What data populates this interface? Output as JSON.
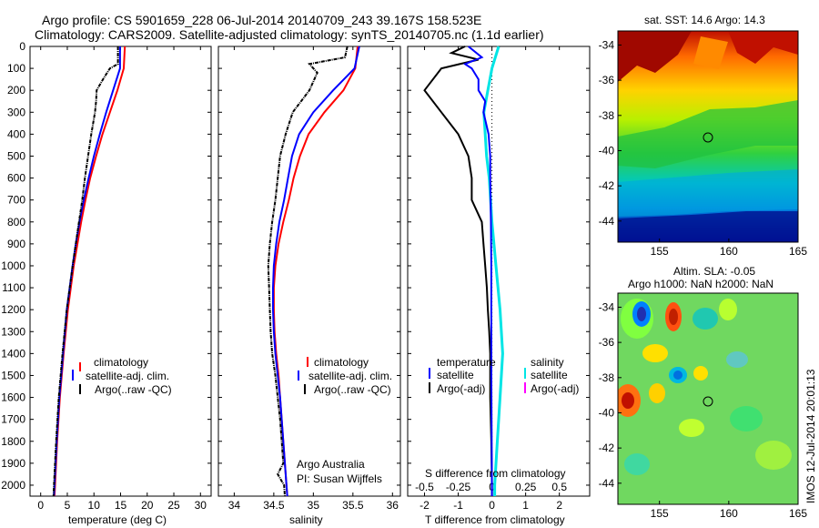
{
  "title_line1": "Argo profile: CS 5901659_228 06-Jul-2014 20140709_243 39.167S 158.523E",
  "title_line2": "Climatology: CARS2009. Satellite-adjusted climatology: synTS_20140705.nc (1.1d earlier)",
  "map_top_title": "sat. SST: 14.6 Argo: 14.3",
  "map_bottom_title1": "Altim. SLA: -0.05",
  "map_bottom_title2": "Argo h1000: NaN h2000: NaN",
  "side_stamp": "IMOS 12-Jul-2014 20:01:13",
  "credit1": "Argo Australia",
  "credit2": "PI: Susan Wijffels",
  "colors": {
    "climatology": "#ff0000",
    "satellite": "#0000ff",
    "argo": "#000000",
    "sal_satellite": "#00e5e5",
    "sal_argo": "#ff00ff"
  },
  "chart_data": [
    {
      "type": "line",
      "name": "temperature_profile",
      "xlabel": "temperature (deg C)",
      "xticks": [
        "0",
        "5",
        "10",
        "15",
        "20",
        "25",
        "30"
      ],
      "xlim": [
        -2,
        32
      ],
      "ylim": [
        0,
        2050
      ],
      "yticks": [
        "0",
        "100",
        "200",
        "300",
        "400",
        "500",
        "600",
        "700",
        "800",
        "900",
        "1000",
        "1100",
        "1200",
        "1300",
        "1400",
        "1500",
        "1600",
        "1700",
        "1800",
        "1900",
        "2000"
      ],
      "legend": [
        "climatology",
        "satellite-adj. clim.",
        "Argo(..raw -QC)"
      ],
      "series": [
        {
          "key": "clim",
          "depth": [
            0,
            100,
            200,
            300,
            400,
            500,
            600,
            700,
            800,
            900,
            1000,
            1200,
            1400,
            1600,
            1800,
            2000,
            2050
          ],
          "value": [
            15.8,
            15.6,
            14.4,
            13.0,
            11.6,
            10.4,
            9.3,
            8.4,
            7.6,
            6.9,
            6.2,
            5.1,
            4.3,
            3.6,
            3.1,
            2.7,
            2.6
          ]
        },
        {
          "key": "sat",
          "depth": [
            0,
            100,
            200,
            300,
            400,
            500,
            600,
            700,
            800,
            900,
            1000,
            1200,
            1400,
            1600,
            1800,
            2000,
            2050
          ],
          "value": [
            14.9,
            14.9,
            13.6,
            12.3,
            11.1,
            10.0,
            9.0,
            8.1,
            7.3,
            6.6,
            6.0,
            4.9,
            4.2,
            3.5,
            3.0,
            2.6,
            2.5
          ]
        },
        {
          "key": "argo",
          "depth": [
            0,
            80,
            100,
            150,
            200,
            250,
            300,
            400,
            500,
            600,
            700,
            800,
            900,
            1000,
            1200,
            1400,
            1600,
            1800,
            2000,
            2050
          ],
          "value": [
            14.5,
            14.5,
            13.0,
            11.7,
            10.5,
            10.4,
            10.2,
            9.5,
            8.9,
            8.3,
            7.8,
            7.2,
            6.6,
            6.0,
            4.9,
            4.1,
            3.4,
            2.9,
            2.5,
            2.4
          ]
        }
      ]
    },
    {
      "type": "line",
      "name": "salinity_profile",
      "xlabel": "salinity",
      "xticks": [
        "34",
        "34.5",
        "35",
        "35.5",
        "36"
      ],
      "xlim": [
        33.8,
        36.1
      ],
      "ylim": [
        0,
        2050
      ],
      "legend": [
        "climatology",
        "satellite-adj. clim.",
        "Argo(..raw -QC)"
      ],
      "series": [
        {
          "key": "clim",
          "depth": [
            0,
            100,
            200,
            300,
            400,
            500,
            600,
            700,
            800,
            900,
            1000,
            1100,
            1200,
            1300,
            1400,
            1500,
            1600,
            1800,
            2000,
            2050
          ],
          "value": [
            35.56,
            35.53,
            35.38,
            35.14,
            34.94,
            34.83,
            34.75,
            34.69,
            34.62,
            34.56,
            34.52,
            34.5,
            34.5,
            34.51,
            34.53,
            34.56,
            34.58,
            34.62,
            34.66,
            34.67
          ]
        },
        {
          "key": "sat",
          "depth": [
            0,
            100,
            200,
            300,
            400,
            500,
            600,
            700,
            800,
            900,
            1000,
            1100,
            1200,
            1300,
            1400,
            1500,
            1600,
            1800,
            2000,
            2050
          ],
          "value": [
            35.58,
            35.52,
            35.25,
            35.0,
            34.82,
            34.73,
            34.68,
            34.63,
            34.57,
            34.53,
            34.5,
            34.49,
            34.49,
            34.5,
            34.52,
            34.55,
            34.58,
            34.62,
            34.66,
            34.67
          ]
        },
        {
          "key": "argo",
          "depth": [
            0,
            50,
            80,
            120,
            200,
            300,
            400,
            500,
            600,
            700,
            800,
            900,
            1000,
            1100,
            1200,
            1300,
            1400,
            1500,
            1600,
            1700,
            1800,
            1900,
            1950,
            2000,
            2050
          ],
          "value": [
            35.43,
            35.4,
            34.95,
            35.05,
            34.95,
            34.74,
            34.65,
            34.58,
            34.55,
            34.52,
            34.48,
            34.45,
            34.43,
            34.44,
            34.45,
            34.46,
            34.48,
            34.52,
            34.55,
            34.58,
            34.6,
            34.62,
            34.55,
            34.63,
            34.64
          ]
        }
      ]
    },
    {
      "type": "line",
      "name": "difference_profile",
      "xlabel": "T difference from climatology",
      "xticks": [
        "-2",
        "-1",
        "0",
        "1",
        "2"
      ],
      "xlim": [
        -2.5,
        2.9
      ],
      "s_label": "S difference from climatology",
      "s_ticks": [
        "-0.5",
        "-0.25",
        "0",
        "0.25",
        "0.5"
      ],
      "ylim": [
        0,
        2050
      ],
      "legend": {
        "temperature_heading": "temperature",
        "salinity_heading": "salinity",
        "satellite": "satellite",
        "argo": "Argo(-adj)"
      },
      "series": [
        {
          "key": "t_sat",
          "depth": [
            0,
            50,
            80,
            100,
            150,
            200,
            250,
            300,
            400,
            500,
            600,
            800,
            1000,
            1300,
            1500,
            2000,
            2050
          ],
          "value": [
            -0.7,
            -0.3,
            -0.8,
            -0.6,
            -0.4,
            -0.4,
            -0.2,
            -0.25,
            -0.1,
            -0.05,
            -0.05,
            -0.03,
            -0.02,
            -0.02,
            -0.02,
            0,
            0
          ]
        },
        {
          "key": "t_argo",
          "depth": [
            0,
            30,
            60,
            100,
            200,
            300,
            400,
            500,
            600,
            700,
            800,
            900,
            1000,
            1100,
            1200,
            1300,
            1400,
            1600,
            1800,
            2000,
            2050
          ],
          "value": [
            -0.8,
            -1.2,
            -0.4,
            -1.5,
            -2.0,
            -1.5,
            -1.0,
            -0.7,
            -0.6,
            -0.6,
            -0.3,
            -0.25,
            -0.2,
            -0.15,
            -0.12,
            -0.08,
            -0.05,
            -0.05,
            -0.02,
            0,
            0
          ]
        },
        {
          "key": "s_sat",
          "depth": [
            0,
            100,
            200,
            300,
            400,
            500,
            600,
            700,
            800,
            1000,
            1200,
            1400,
            1600,
            1800,
            2000,
            2050
          ],
          "value": [
            0.05,
            0.0,
            -0.03,
            -0.06,
            -0.05,
            -0.04,
            -0.02,
            -0.01,
            0,
            0.03,
            0.06,
            0.08,
            0.06,
            0.04,
            0.02,
            0.02
          ]
        }
      ]
    },
    {
      "type": "heatmap",
      "name": "sst_map",
      "title": "sat. SST: 14.6 Argo: 14.3",
      "xticks": [
        "155",
        "160",
        "165"
      ],
      "yticks": [
        "-34",
        "-36",
        "-38",
        "-40",
        "-42",
        "-44"
      ],
      "xlim": [
        152,
        165
      ],
      "ylim": [
        -45.2,
        -33.2
      ],
      "marker": {
        "lon": 158.5,
        "lat": -39.17
      }
    },
    {
      "type": "heatmap",
      "name": "sla_map",
      "title": "Altim. SLA: -0.05",
      "xticks": [
        "155",
        "160",
        "165"
      ],
      "yticks": [
        "-34",
        "-36",
        "-38",
        "-40",
        "-42",
        "-44"
      ],
      "xlim": [
        152,
        165
      ],
      "ylim": [
        -45.2,
        -33.2
      ],
      "marker": {
        "lon": 158.5,
        "lat": -39.17
      }
    }
  ]
}
